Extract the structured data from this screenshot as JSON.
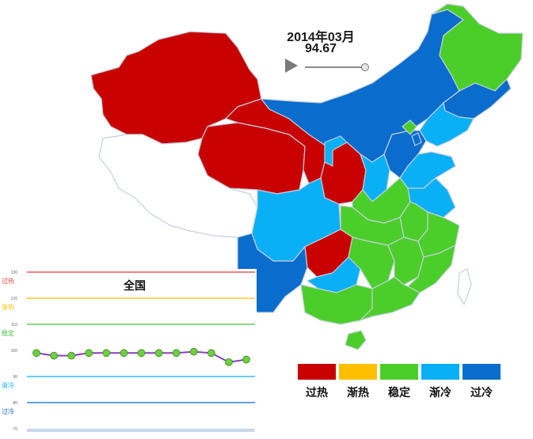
{
  "colors": {
    "overheat": "#c80000",
    "warming": "#ffbf00",
    "stable": "#4cce2a",
    "cooling": "#0ab0f5",
    "overcool": "#0a6ccc",
    "nodata": "#ffffff",
    "border": "#b9c8dc"
  },
  "header": {
    "date": "2014年03月",
    "value": "94.67"
  },
  "legend": {
    "items": [
      {
        "label": "过热",
        "color": "#c80000"
      },
      {
        "label": "渐热",
        "color": "#ffbf00"
      },
      {
        "label": "稳定",
        "color": "#4cce2a"
      },
      {
        "label": "渐冷",
        "color": "#0ab0f5"
      },
      {
        "label": "过冷",
        "color": "#0a6ccc"
      }
    ]
  },
  "map": {
    "regions": [
      {
        "name": "xinjiang",
        "status": "overheat"
      },
      {
        "name": "tibet",
        "status": "nodata"
      },
      {
        "name": "qinghai",
        "status": "overheat"
      },
      {
        "name": "gansu",
        "status": "overheat"
      },
      {
        "name": "inner-mongolia",
        "status": "overcool"
      },
      {
        "name": "heilongjiang",
        "status": "stable"
      },
      {
        "name": "jilin",
        "status": "overcool"
      },
      {
        "name": "liaoning",
        "status": "cooling"
      },
      {
        "name": "ningxia",
        "status": "cooling"
      },
      {
        "name": "shaanxi",
        "status": "overheat"
      },
      {
        "name": "shanxi",
        "status": "cooling"
      },
      {
        "name": "hebei",
        "status": "overcool"
      },
      {
        "name": "beijing",
        "status": "stable"
      },
      {
        "name": "tianjin",
        "status": "overcool"
      },
      {
        "name": "shandong",
        "status": "cooling"
      },
      {
        "name": "henan",
        "status": "stable"
      },
      {
        "name": "jiangsu",
        "status": "cooling"
      },
      {
        "name": "anhui",
        "status": "stable"
      },
      {
        "name": "hubei",
        "status": "stable"
      },
      {
        "name": "sichuan",
        "status": "cooling"
      },
      {
        "name": "chongqing",
        "status": "overheat"
      },
      {
        "name": "yunnan",
        "status": "overcool"
      },
      {
        "name": "guizhou",
        "status": "cooling"
      },
      {
        "name": "hunan",
        "status": "stable"
      },
      {
        "name": "jiangxi",
        "status": "stable"
      },
      {
        "name": "zhejiang",
        "status": "stable"
      },
      {
        "name": "fujian",
        "status": "stable"
      },
      {
        "name": "guangxi",
        "status": "stable"
      },
      {
        "name": "guangdong",
        "status": "stable"
      },
      {
        "name": "hainan",
        "status": "stable"
      },
      {
        "name": "taiwan",
        "status": "nodata"
      }
    ]
  },
  "chart_data": {
    "type": "line",
    "title": "全国",
    "ylim": [
      70,
      130
    ],
    "yticks": [
      70,
      80,
      90,
      100,
      110,
      120,
      130
    ],
    "bands": [
      {
        "label": "过热",
        "value": 130,
        "color": "#e23b3b"
      },
      {
        "label": "渐热",
        "value": 120,
        "color": "#ffbf00"
      },
      {
        "label": "稳定",
        "value": 110,
        "color": "#3ec23e"
      },
      {
        "label": "渐冷",
        "value": 90,
        "color": "#0ab0f5"
      },
      {
        "label": "过冷",
        "value": 80,
        "color": "#0a6ccc"
      }
    ],
    "series": [
      {
        "values": [
          99,
          98,
          98,
          99,
          99,
          99,
          99,
          99,
          99,
          99.5,
          99,
          95.5,
          96.5
        ]
      }
    ],
    "line_color": "#8a3cbf",
    "marker_color": "#6ccf3f"
  }
}
